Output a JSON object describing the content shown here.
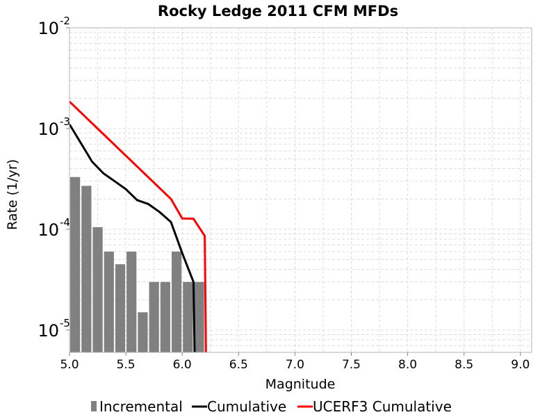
{
  "chart_data": {
    "type": "bar",
    "title": "Rocky Ledge 2011 CFM MFDs",
    "xlabel": "Magnitude",
    "ylabel": "Rate (1/yr)",
    "xlim": [
      5.0,
      9.1
    ],
    "ylim": [
      6e-06,
      0.01
    ],
    "yscale": "log",
    "grid": true,
    "legend_position": "bottom",
    "x_ticks": [
      "5.0",
      "5.5",
      "6.0",
      "6.5",
      "7.0",
      "7.5",
      "8.0",
      "8.5",
      "9.0"
    ],
    "y_ticks": [
      {
        "base": "10",
        "exp": "-2",
        "value": 0.01
      },
      {
        "base": "10",
        "exp": "-3",
        "value": 0.001
      },
      {
        "base": "10",
        "exp": "-4",
        "value": 0.0001
      },
      {
        "base": "10",
        "exp": "-5",
        "value": 1e-05
      }
    ],
    "bar_width": 0.1,
    "series": [
      {
        "name": "Incremental",
        "kind": "bar",
        "color": "#808080",
        "x": [
          5.05,
          5.15,
          5.25,
          5.35,
          5.45,
          5.55,
          5.65,
          5.75,
          5.85,
          5.95,
          6.05,
          6.15
        ],
        "values": [
          0.00033,
          0.00027,
          0.000105,
          6e-05,
          4.5e-05,
          6e-05,
          1.5e-05,
          3e-05,
          3e-05,
          6e-05,
          3e-05,
          3e-05
        ]
      },
      {
        "name": "Cumulative",
        "kind": "line",
        "color": "#000000",
        "x": [
          5.0,
          5.1,
          5.2,
          5.3,
          5.4,
          5.5,
          5.6,
          5.7,
          5.8,
          5.9,
          6.0,
          6.1,
          6.11
        ],
        "values": [
          0.0011,
          0.00072,
          0.00047,
          0.00036,
          0.0003,
          0.00025,
          0.000195,
          0.000178,
          0.000148,
          0.000118,
          5.8e-05,
          3e-05,
          5e-06
        ]
      },
      {
        "name": "UCERF3 Cumulative",
        "kind": "line",
        "color": "#ff0000",
        "x": [
          5.0,
          5.9,
          6.0,
          6.1,
          6.2,
          6.21
        ],
        "values": [
          0.00185,
          0.0002,
          0.000128,
          0.000127,
          8.6e-05,
          5e-06
        ]
      }
    ]
  }
}
